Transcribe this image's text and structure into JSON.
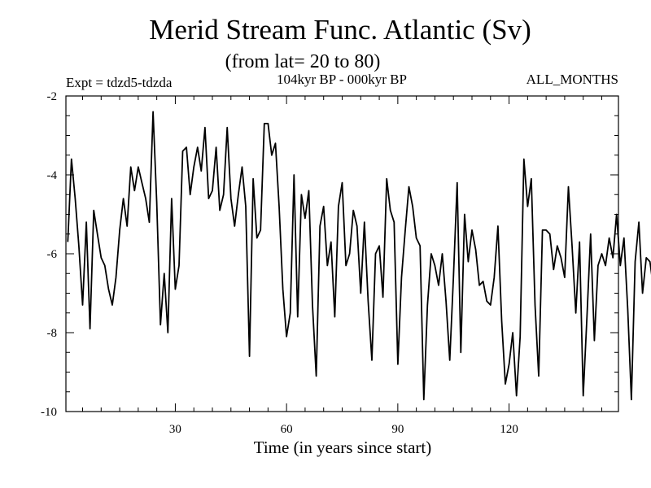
{
  "chart_data": {
    "type": "line",
    "title": "Merid Stream Func. Atlantic (Sv)",
    "subtitle": "(from lat= 20 to 80)",
    "expt_label": "Expt = tdzd5-tdzda",
    "period_label": "104kyr BP - 000kyr BP",
    "months_label": "ALL_MONTHS",
    "xlabel": "Time (in years since start)",
    "ylabel": "",
    "xlim": [
      0.5,
      149.5
    ],
    "ylim": [
      -10,
      -2
    ],
    "xticks": [
      30,
      60,
      90,
      120
    ],
    "yticks": [
      -2,
      -4,
      -6,
      -8,
      -10
    ],
    "grid": false,
    "x_start": 1,
    "x_step": 1,
    "values": [
      -5.7,
      -3.6,
      -4.6,
      -5.8,
      -7.3,
      -5.2,
      -7.9,
      -4.9,
      -5.5,
      -6.1,
      -6.3,
      -6.9,
      -7.3,
      -6.6,
      -5.4,
      -4.6,
      -5.3,
      -3.8,
      -4.4,
      -3.8,
      -4.2,
      -4.6,
      -5.2,
      -2.4,
      -4.7,
      -7.8,
      -6.5,
      -8.0,
      -4.6,
      -6.9,
      -6.3,
      -3.4,
      -3.3,
      -4.5,
      -3.8,
      -3.3,
      -3.9,
      -2.8,
      -4.6,
      -4.4,
      -3.3,
      -4.9,
      -4.5,
      -2.8,
      -4.6,
      -5.3,
      -4.5,
      -3.8,
      -4.8,
      -8.6,
      -4.1,
      -5.6,
      -5.4,
      -2.7,
      -2.7,
      -3.5,
      -3.2,
      -4.8,
      -6.9,
      -8.1,
      -7.5,
      -4.0,
      -7.6,
      -4.5,
      -5.1,
      -4.4,
      -7.3,
      -9.1,
      -5.3,
      -4.8,
      -6.3,
      -5.7,
      -7.6,
      -4.8,
      -4.2,
      -6.3,
      -6.0,
      -4.9,
      -5.3,
      -7.0,
      -5.2,
      -7.2,
      -8.7,
      -6.0,
      -5.8,
      -7.1,
      -4.1,
      -4.9,
      -5.2,
      -8.8,
      -6.6,
      -5.4,
      -4.3,
      -4.8,
      -5.6,
      -5.8,
      -9.7,
      -7.3,
      -6.0,
      -6.3,
      -6.8,
      -6.0,
      -7.2,
      -8.7,
      -6.6,
      -4.2,
      -8.5,
      -5.0,
      -6.2,
      -5.4,
      -5.9,
      -6.8,
      -6.7,
      -7.2,
      -7.3,
      -6.6,
      -5.3,
      -7.7,
      -9.3,
      -8.8,
      -8.0,
      -9.6,
      -8.1,
      -3.6,
      -4.8,
      -4.1,
      -7.3,
      -9.1,
      -5.4,
      -5.4,
      -5.5,
      -6.4,
      -5.8,
      -6.1,
      -6.6,
      -4.3,
      -5.8,
      -7.5,
      -5.7,
      -9.6,
      -7.6,
      -5.5,
      -8.2,
      -6.3,
      -6.0,
      -6.3,
      -5.6,
      -6.1,
      -5.0,
      -6.3,
      -5.6,
      -7.4,
      -9.7,
      -6.2,
      -5.2,
      -7.0,
      -6.1,
      -6.2,
      -6.9
    ]
  }
}
